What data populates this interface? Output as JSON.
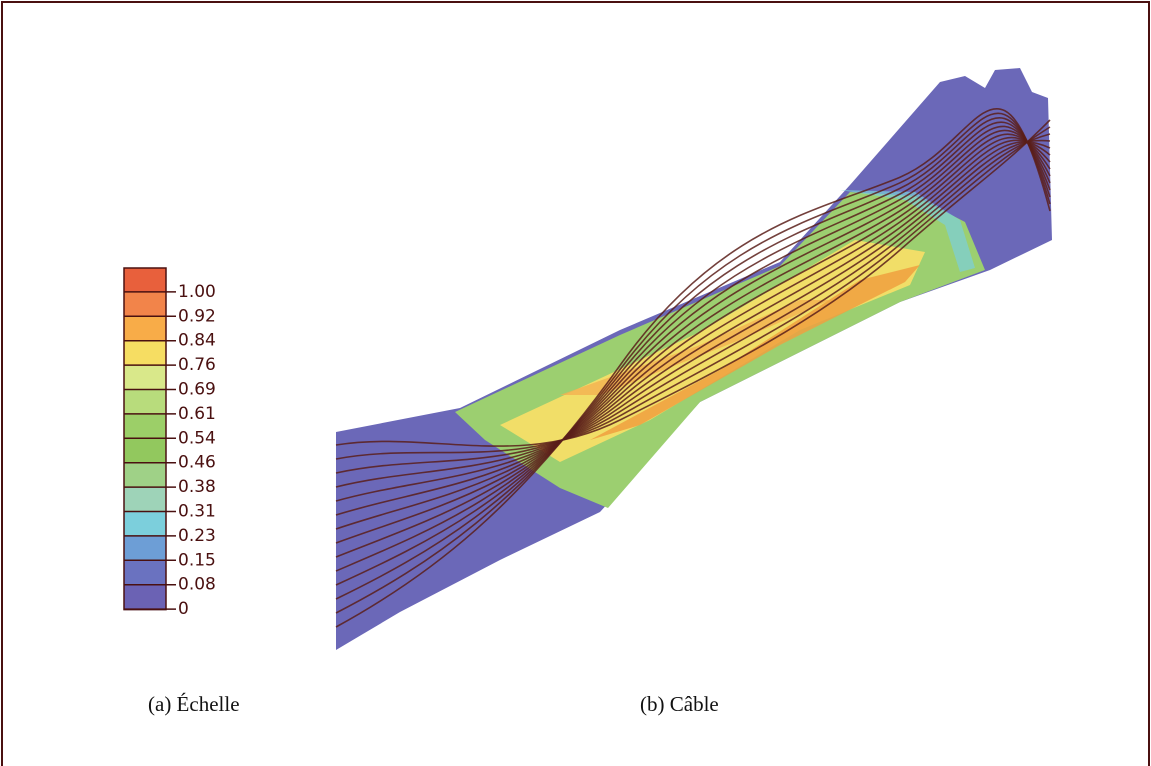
{
  "scale": {
    "labels": [
      "1.00",
      "0.92",
      "0.84",
      "0.76",
      "0.69",
      "0.61",
      "0.54",
      "0.46",
      "0.38",
      "0.31",
      "0.23",
      "0.15",
      "0.08",
      "0"
    ],
    "colors": [
      "#e8603c",
      "#f2844a",
      "#f8ac48",
      "#f6dd62",
      "#d9e88a",
      "#b8dc7c",
      "#9ccf68",
      "#92c85e",
      "#9fd187",
      "#9ed3b8",
      "#7ccfdc",
      "#6d9ed6",
      "#6a72c0",
      "#6b62b4"
    ]
  },
  "captions": {
    "a": "(a) Échelle",
    "b": "(b) Câble"
  }
}
